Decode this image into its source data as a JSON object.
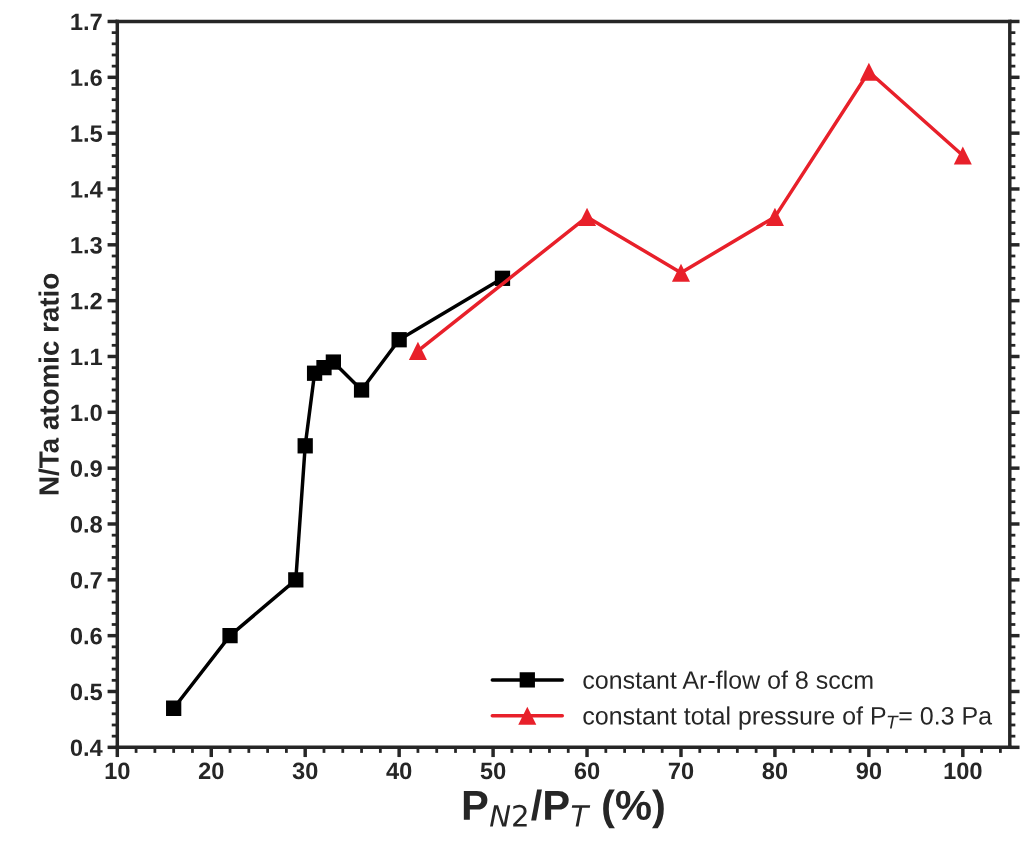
{
  "chart_data": {
    "type": "line",
    "xlabel": "P$_{N2}$/P$_{T}$ (%)",
    "ylabel": "N/Ta atomic ratio",
    "xlim": [
      10,
      105
    ],
    "xticks": [
      10,
      20,
      30,
      40,
      50,
      60,
      70,
      80,
      90,
      100
    ],
    "ylim": [
      0.4,
      1.7
    ],
    "yticks": [
      {
        "value": 0.4,
        "label": "0.4"
      },
      {
        "value": 0.5,
        "label": "0.5"
      },
      {
        "value": 0.6,
        "label": "0.6"
      },
      {
        "value": 0.7,
        "label": "0.7"
      },
      {
        "value": 0.8,
        "label": "0.8"
      },
      {
        "value": 0.9,
        "label": "0.9"
      },
      {
        "value": 1.0,
        "label": "1.0"
      },
      {
        "value": 1.1,
        "label": "1.1"
      },
      {
        "value": 1.2,
        "label": "1.2"
      },
      {
        "value": 1.3,
        "label": "1.3"
      },
      {
        "value": 1.4,
        "label": "1.4"
      },
      {
        "value": 1.5,
        "label": "1.5"
      },
      {
        "value": 1.6,
        "label": "1.6"
      },
      {
        "value": 1.7,
        "label": "1.7"
      }
    ],
    "grid": false,
    "legend": "bottom right",
    "line_style": "solid",
    "series": [
      {
        "name": "constant Ar-flow of 8 sccm",
        "color": "#000000",
        "marker": "square",
        "x": [
          16,
          22,
          29,
          30,
          31,
          32,
          33,
          36,
          40,
          51
        ],
        "values": [
          0.47,
          0.6,
          0.7,
          0.94,
          1.07,
          1.08,
          1.09,
          1.04,
          1.13,
          1.24
        ]
      },
      {
        "name": "constant total pressure of P$_{T}$= 0.3 Pa",
        "color": "#e8202a",
        "marker": "triangle",
        "x": [
          42,
          60,
          70,
          80,
          90,
          100
        ],
        "values": [
          1.11,
          1.35,
          1.25,
          1.35,
          1.61,
          1.46
        ]
      }
    ]
  }
}
